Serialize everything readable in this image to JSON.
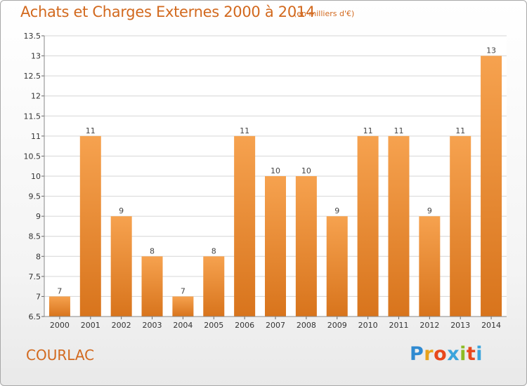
{
  "title": "Achats et Charges Externes 2000 à 2014",
  "subtitle": "(en milliers d'€)",
  "commune": "COURLAC",
  "brand": {
    "letters": [
      "P",
      "r",
      "o",
      "x",
      "i",
      "t",
      "i"
    ],
    "colors": [
      "#2f8ad1",
      "#e8a21a",
      "#e8481c",
      "#3aa4dc",
      "#8dbb24",
      "#e8481c",
      "#3aa4dc"
    ]
  },
  "colors": {
    "bar_light": "#f6a24f",
    "bar_dark": "#d8741c",
    "title": "#d2691e"
  },
  "chart_data": {
    "type": "bar",
    "title": "Achats et Charges Externes 2000 à 2014",
    "subtitle": "(en milliers d'€)",
    "xlabel": "",
    "ylabel": "",
    "categories": [
      "2000",
      "2001",
      "2002",
      "2003",
      "2004",
      "2005",
      "2006",
      "2007",
      "2008",
      "2009",
      "2010",
      "2011",
      "2012",
      "2013",
      "2014"
    ],
    "values": [
      7,
      11,
      9,
      8,
      7,
      8,
      11,
      10,
      10,
      9,
      11,
      11,
      9,
      11,
      13
    ],
    "ylim": [
      6.5,
      13.5
    ],
    "yticks": [
      "6.5",
      "7",
      "7.5",
      "8",
      "8.5",
      "9",
      "9.5",
      "10",
      "10.5",
      "11",
      "11.5",
      "12",
      "12.5",
      "13",
      "13.5"
    ],
    "grid": true
  }
}
